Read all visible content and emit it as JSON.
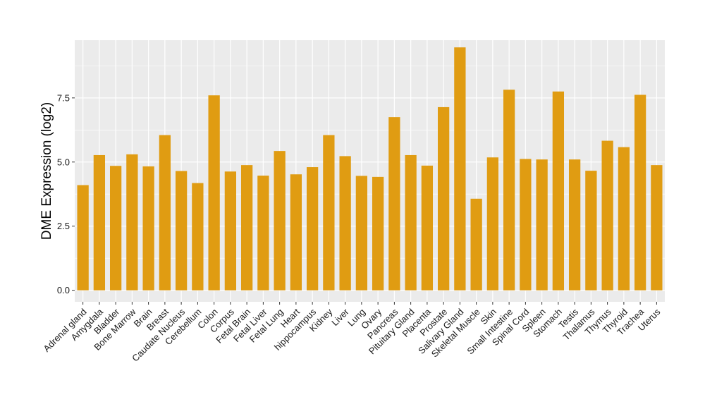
{
  "chart_data": {
    "type": "bar",
    "ylabel": "DME Expression (log2)",
    "xlabel": "",
    "ylim": [
      -0.45,
      9.75
    ],
    "yticks": [
      0.0,
      2.5,
      5.0,
      7.5
    ],
    "ytick_labels": [
      "0.0",
      "2.5",
      "5.0",
      "7.5"
    ],
    "grid": true,
    "bar_color": "#E09C12",
    "panel_color": "#EBEBEB",
    "categories": [
      "Adrenal gland",
      "Amygdala",
      "Bladder",
      "Bone Marrow",
      "Brain",
      "Breast",
      "Caudate Nucleus",
      "Cerebellum",
      "Colon",
      "Corpus",
      "Fetal Brain",
      "Fetal Liver",
      "Fetal Lung",
      "Heart",
      "hippocampus",
      "Kidney",
      "Liver",
      "Lung",
      "Ovary",
      "Pancreas",
      "Pituitary Gland",
      "Placenta",
      "Prostate",
      "Salivary Gland",
      "Skeletal Muscle",
      "Skin",
      "Small Intestine",
      "Spinal Cord",
      "Spleen",
      "Stomach",
      "Testis",
      "Thalamus",
      "Thymus",
      "Thyroid",
      "Trachea",
      "Uterus"
    ],
    "values": [
      4.1,
      5.27,
      4.85,
      5.3,
      4.83,
      6.05,
      4.65,
      4.18,
      7.6,
      4.63,
      4.88,
      4.47,
      5.43,
      4.52,
      4.8,
      6.05,
      5.23,
      4.46,
      4.42,
      6.75,
      5.27,
      4.86,
      7.14,
      9.47,
      3.57,
      5.18,
      7.82,
      5.12,
      5.1,
      7.75,
      5.1,
      4.66,
      5.83,
      5.58,
      7.62,
      4.88
    ]
  }
}
